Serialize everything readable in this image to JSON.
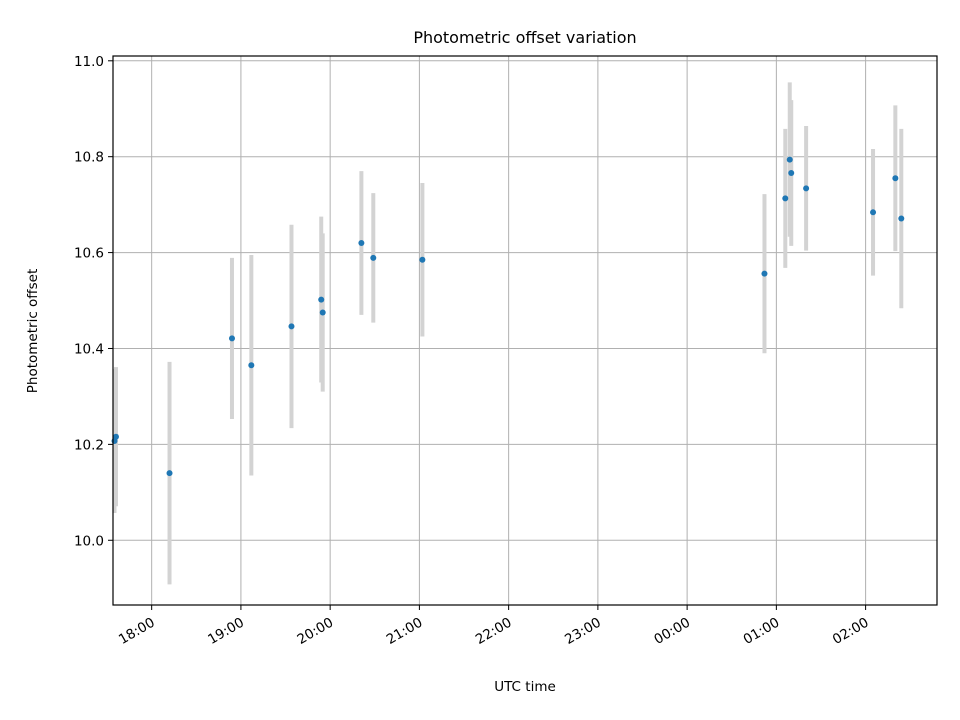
{
  "chart_data": {
    "type": "scatter",
    "title": "Photometric offset variation",
    "xlabel": "UTC time",
    "ylabel": "Photometric offset",
    "x_axis_type": "time",
    "xlim": [
      "17:34",
      "02:48"
    ],
    "ylim": [
      9.865,
      11.01
    ],
    "xticks": [
      "18:00",
      "19:00",
      "20:00",
      "21:00",
      "22:00",
      "23:00",
      "00:00",
      "01:00",
      "02:00"
    ],
    "yticks": [
      "10.0",
      "10.2",
      "10.4",
      "10.6",
      "10.8",
      "11.0"
    ],
    "grid": true,
    "marker_color": "#1f77b4",
    "errorbar_color": "#d3d3d3",
    "points": [
      {
        "x": "17:35",
        "y": 10.207,
        "err": 0.15
      },
      {
        "x": "17:36",
        "y": 10.216,
        "err": 0.145
      },
      {
        "x": "18:12",
        "y": 10.14,
        "err": 0.232
      },
      {
        "x": "18:54",
        "y": 10.421,
        "err": 0.168
      },
      {
        "x": "19:07",
        "y": 10.365,
        "err": 0.23
      },
      {
        "x": "19:34",
        "y": 10.446,
        "err": 0.212
      },
      {
        "x": "19:54",
        "y": 10.502,
        "err": 0.173
      },
      {
        "x": "19:55",
        "y": 10.475,
        "err": 0.165
      },
      {
        "x": "20:21",
        "y": 10.62,
        "err": 0.15
      },
      {
        "x": "20:29",
        "y": 10.589,
        "err": 0.135
      },
      {
        "x": "21:02",
        "y": 10.585,
        "err": 0.16
      },
      {
        "x": "00:52",
        "y": 10.556,
        "err": 0.166
      },
      {
        "x": "01:06",
        "y": 10.713,
        "err": 0.145
      },
      {
        "x": "01:09",
        "y": 10.794,
        "err": 0.161
      },
      {
        "x": "01:10",
        "y": 10.766,
        "err": 0.152
      },
      {
        "x": "01:20",
        "y": 10.734,
        "err": 0.13
      },
      {
        "x": "02:05",
        "y": 10.684,
        "err": 0.132
      },
      {
        "x": "02:20",
        "y": 10.755,
        "err": 0.152
      },
      {
        "x": "02:24",
        "y": 10.671,
        "err": 0.187
      }
    ]
  }
}
